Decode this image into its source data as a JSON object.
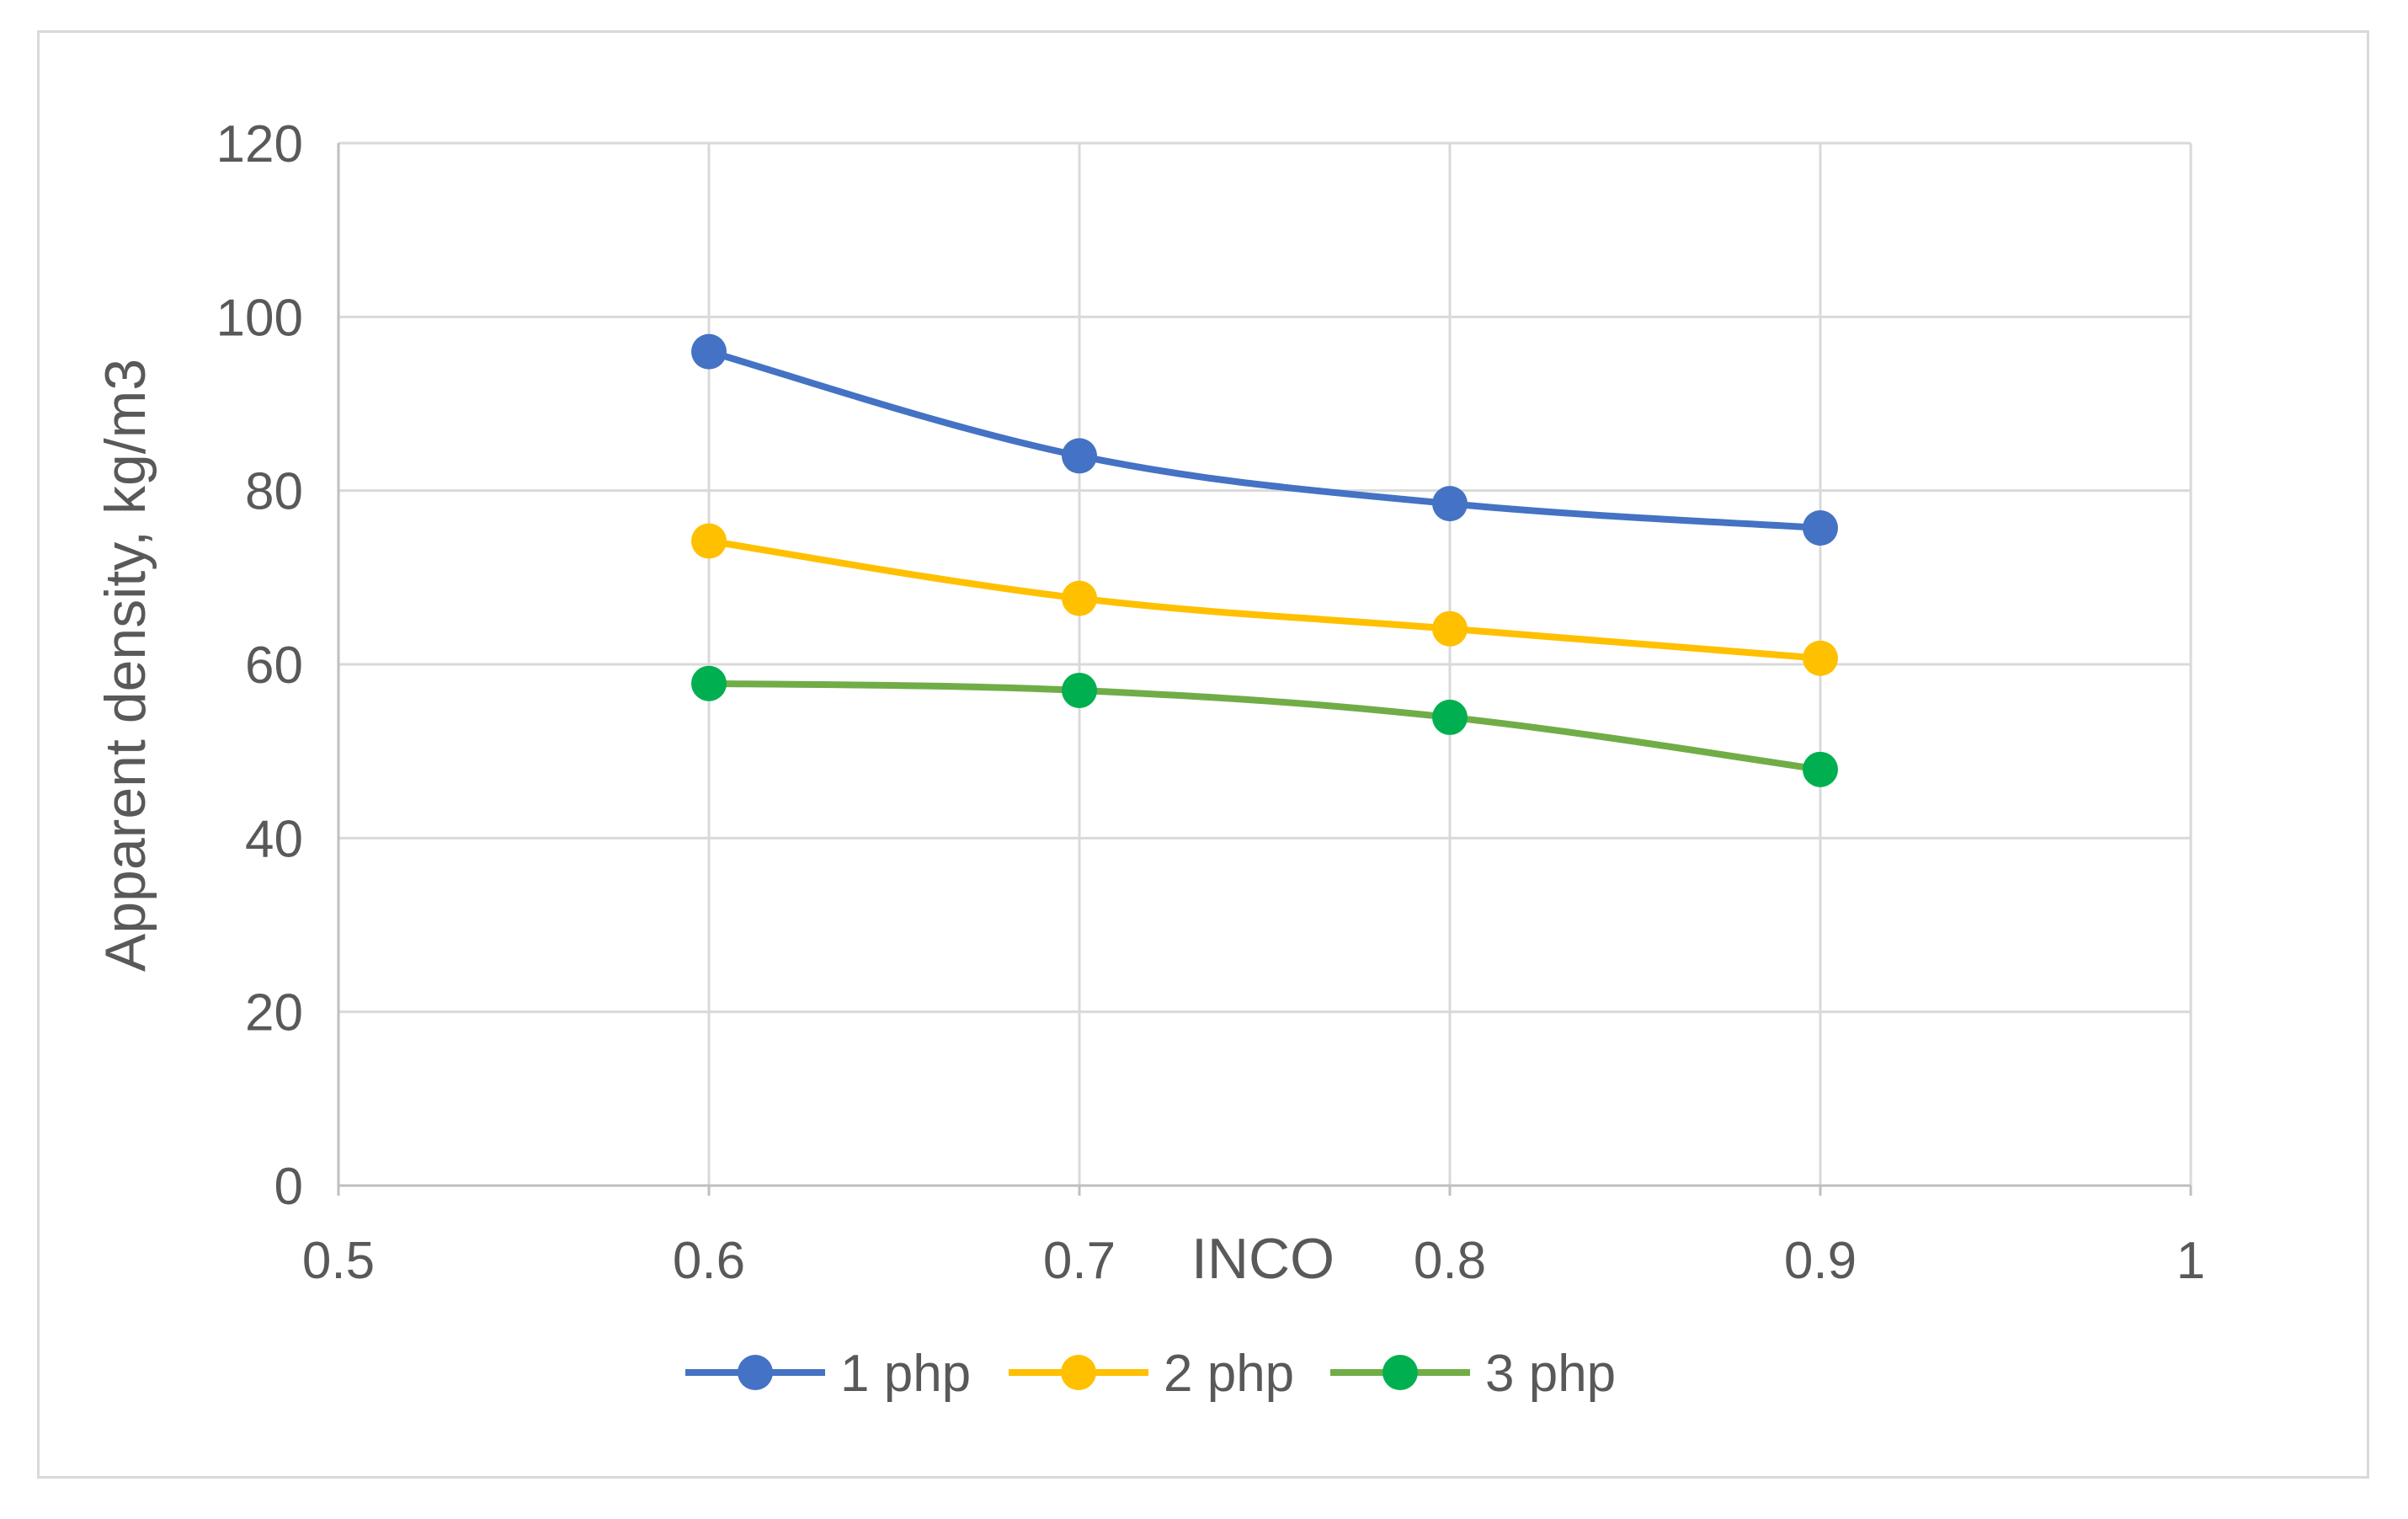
{
  "chart_data": {
    "type": "line",
    "title": "",
    "xlabel": "INCO",
    "ylabel": "Apparent density, kg/m3",
    "xlim": [
      0.5,
      1
    ],
    "ylim": [
      0,
      120
    ],
    "x_ticks": [
      "0.5",
      "0.6",
      "0.7",
      "0.8",
      "0.9",
      "1"
    ],
    "y_ticks": [
      "0",
      "20",
      "40",
      "60",
      "80",
      "100",
      "120"
    ],
    "grid": true,
    "legend_position": "bottom",
    "x": [
      0.6,
      0.7,
      0.8,
      0.9
    ],
    "series": [
      {
        "name": "1 php",
        "color": "#4472c4",
        "values": [
          96,
          84,
          78.5,
          75.7
        ]
      },
      {
        "name": "2 php",
        "color": "#ffc000",
        "values": [
          74.2,
          67.6,
          64.1,
          60.7
        ]
      },
      {
        "name": "3 php",
        "color": "#00b050",
        "line_color": "#70ad47",
        "values": [
          57.8,
          57,
          53.9,
          47.9
        ]
      }
    ]
  }
}
